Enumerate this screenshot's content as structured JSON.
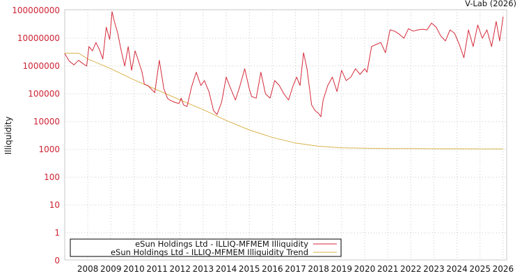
{
  "chart_data": {
    "type": "line",
    "title": "",
    "credit": "V-Lab (2026)",
    "xlabel": "",
    "ylabel": "Illiquidity",
    "yscale": "log",
    "ylim": [
      0,
      100000000
    ],
    "grid": true,
    "legend_position": "bottom-left inside",
    "y_ticks": [
      "100000000",
      "10000000",
      "1000000",
      "100000",
      "10000",
      "1000",
      "100",
      "10",
      "1",
      "0"
    ],
    "x_ticks": [
      "2008",
      "2009",
      "2010",
      "2011",
      "2012",
      "2013",
      "2014",
      "2015",
      "2016",
      "2017",
      "2018",
      "2019",
      "2020",
      "2021",
      "2022",
      "2023",
      "2024",
      "2025",
      "2026"
    ],
    "series": [
      {
        "name": "eSun Holdings Ltd - ILLIQ-MFMEM Illiquidity",
        "color": "#d42a3a",
        "x": [
          2007.0,
          2007.2,
          2007.4,
          2007.6,
          2007.8,
          2007.95,
          2008.05,
          2008.2,
          2008.35,
          2008.5,
          2008.65,
          2008.8,
          2008.95,
          2009.05,
          2009.15,
          2009.3,
          2009.45,
          2009.6,
          2009.75,
          2009.9,
          2010.05,
          2010.2,
          2010.35,
          2010.45,
          2010.6,
          2010.75,
          2010.9,
          2011.1,
          2011.3,
          2011.45,
          2011.55,
          2011.75,
          2011.95,
          2012.05,
          2012.15,
          2012.3,
          2012.5,
          2012.7,
          2012.9,
          2013.05,
          2013.25,
          2013.45,
          2013.6,
          2013.8,
          2014.0,
          2014.2,
          2014.4,
          2014.6,
          2014.8,
          2015.0,
          2015.1,
          2015.3,
          2015.5,
          2015.7,
          2015.9,
          2016.1,
          2016.3,
          2016.5,
          2016.7,
          2016.9,
          2017.05,
          2017.2,
          2017.35,
          2017.5,
          2017.7,
          2017.85,
          2018.0,
          2018.1,
          2018.2,
          2018.4,
          2018.6,
          2018.8,
          2019.0,
          2019.2,
          2019.4,
          2019.6,
          2019.8,
          2020.0,
          2020.1,
          2020.3,
          2020.5,
          2020.7,
          2020.9,
          2021.1,
          2021.3,
          2021.5,
          2021.7,
          2021.9,
          2022.1,
          2022.3,
          2022.5,
          2022.7,
          2022.9,
          2023.1,
          2023.3,
          2023.5,
          2023.7,
          2023.9,
          2024.1,
          2024.3,
          2024.5,
          2024.7,
          2024.9,
          2025.1,
          2025.3,
          2025.5,
          2025.7,
          2025.85,
          2026.0
        ],
        "values": [
          2800000,
          1500000,
          1100000,
          1600000,
          1200000,
          1000000,
          5000000,
          3500000,
          7000000,
          4000000,
          1800000,
          25000000,
          9000000,
          90000000,
          40000000,
          15000000,
          3500000,
          1000000,
          5000000,
          700000,
          3500000,
          1500000,
          600000,
          220000,
          200000,
          150000,
          110000,
          1600000,
          150000,
          70000,
          60000,
          50000,
          45000,
          70000,
          40000,
          35000,
          180000,
          600000,
          200000,
          300000,
          120000,
          25000,
          18000,
          50000,
          400000,
          150000,
          60000,
          200000,
          800000,
          150000,
          80000,
          70000,
          600000,
          100000,
          70000,
          300000,
          200000,
          100000,
          60000,
          200000,
          400000,
          200000,
          3000000,
          800000,
          40000,
          25000,
          20000,
          15000,
          60000,
          200000,
          400000,
          120000,
          700000,
          300000,
          400000,
          800000,
          500000,
          800000,
          600000,
          5000000,
          6000000,
          7000000,
          3000000,
          20000000,
          18000000,
          14000000,
          10000000,
          22000000,
          18000000,
          20000000,
          21000000,
          20000000,
          35000000,
          25000000,
          12000000,
          8000000,
          20000000,
          15000000,
          6000000,
          2000000,
          20000000,
          5000000,
          30000000,
          10000000,
          20000000,
          5000000,
          40000000,
          8000000,
          60000000
        ]
      },
      {
        "name": "eSun Holdings Ltd - ILLIQ-MFMEM Illiquidity Trend",
        "color": "#d9b24a",
        "x": [
          2007.0,
          2007.6,
          2008.0,
          2009.0,
          2010.0,
          2011.0,
          2012.0,
          2013.0,
          2014.0,
          2015.0,
          2016.0,
          2017.0,
          2018.0,
          2019.0,
          2020.0,
          2021.0,
          2022.0,
          2023.0,
          2024.0,
          2025.0,
          2026.0
        ],
        "values": [
          2900000,
          2900000,
          1800000,
          800000,
          320000,
          140000,
          60000,
          27000,
          11000,
          5000,
          2700,
          1700,
          1300,
          1150,
          1100,
          1080,
          1070,
          1060,
          1060,
          1050,
          1050
        ]
      }
    ]
  },
  "legend": {
    "items": [
      {
        "label": "eSun Holdings Ltd - ILLIQ-MFMEM Illiquidity",
        "color": "#d42a3a"
      },
      {
        "label": "eSun Holdings Ltd - ILLIQ-MFMEM Illiquidity Trend",
        "color": "#d9b24a"
      }
    ]
  }
}
